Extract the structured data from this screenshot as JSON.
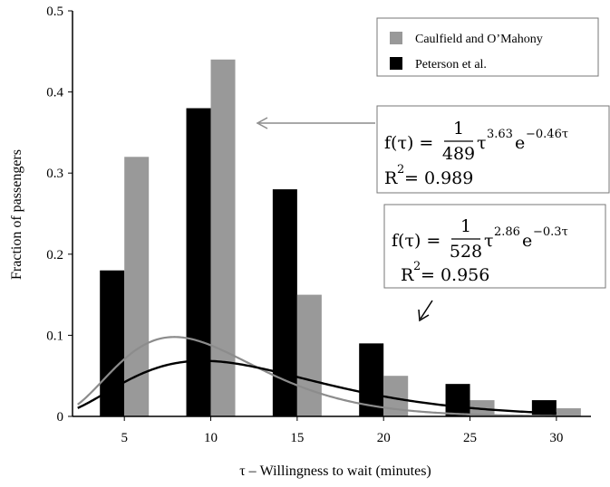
{
  "chart_data": {
    "type": "bar",
    "xlabel": "τ – Willingness to wait (minutes)",
    "ylabel": "Fraction of passengers",
    "xlim": [
      2,
      32
    ],
    "ylim": [
      0,
      0.5
    ],
    "x_ticks": [
      "5",
      "10",
      "15",
      "20",
      "25",
      "30"
    ],
    "y_ticks": [
      "0",
      "0.1",
      "0.2",
      "0.3",
      "0.4",
      "0.5"
    ],
    "categories": [
      5,
      10,
      15,
      20,
      25,
      30
    ],
    "series": [
      {
        "name": "Peterson et al.",
        "color": "#000000",
        "values": [
          0.18,
          0.38,
          0.28,
          0.09,
          0.04,
          0.02
        ]
      },
      {
        "name": "Caulfield and O’Mahony",
        "color": "#999999",
        "values": [
          0.32,
          0.44,
          0.15,
          0.05,
          0.02,
          0.01
        ]
      }
    ],
    "fits": [
      {
        "series": "Caulfield and O’Mahony",
        "color": "#8c8c8c",
        "coefficient": 489,
        "exponent": 3.63,
        "rate": 0.46,
        "eq_lhs": "f(τ) = ",
        "eq_num": "1",
        "eq_den": "489",
        "eq_tail": "τ",
        "eq_sup": "3.63",
        "eq_e": "e",
        "eq_esup": "−0.46τ",
        "r2_label": "R",
        "r2_sup": "2",
        "r2_value": " = 0.989"
      },
      {
        "series": "Peterson et al.",
        "color": "#000000",
        "coefficient": 528,
        "exponent": 2.86,
        "rate": 0.3,
        "eq_lhs": "f(τ) = ",
        "eq_num": "1",
        "eq_den": "528",
        "eq_tail": "τ",
        "eq_sup": "2.86",
        "eq_e": "e",
        "eq_esup": "−0.3τ",
        "r2_label": "R",
        "r2_sup": "2",
        "r2_value": " = 0.956"
      }
    ],
    "legend_position": "top-right",
    "grid": false
  }
}
